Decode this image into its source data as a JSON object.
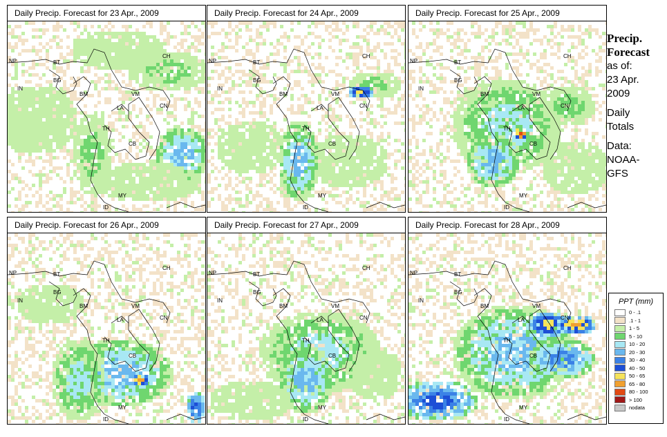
{
  "panels": [
    {
      "title": "Daily Precip. Forecast for  23 Apr., 2009"
    },
    {
      "title": "Daily Precip. Forecast for  24 Apr., 2009"
    },
    {
      "title": "Daily Precip. Forecast for  25 Apr., 2009"
    },
    {
      "title": "Daily Precip. Forecast for  26 Apr., 2009"
    },
    {
      "title": "Daily Precip. Forecast for  27 Apr., 2009"
    },
    {
      "title": "Daily Precip. Forecast for  28 Apr., 2009"
    }
  ],
  "side": {
    "heading1": "Precip.",
    "heading2": "Forecast",
    "asof1": "as of:",
    "asof2": "23 Apr.",
    "asof3": "2009",
    "daily1": "Daily",
    "daily2": "Totals",
    "data1": "Data:",
    "data2": "NOAA-",
    "data3": "GFS"
  },
  "map_labels": {
    "np": "NP",
    "bt": "BT",
    "bg": "BG",
    "in": "IN",
    "bm": "BM",
    "ch": "CH",
    "vm": "VM",
    "la": "LA",
    "th": "TH",
    "cb": "CB",
    "my": "MY",
    "id": "ID",
    "cn": "CN"
  },
  "legend": {
    "title": "PPT (mm)",
    "items": [
      {
        "label": "0 - .1",
        "color": "#ffffff"
      },
      {
        "label": ".1 - 1",
        "color": "#f3e2c8"
      },
      {
        "label": "1 - 5",
        "color": "#c4efa8"
      },
      {
        "label": "5 - 10",
        "color": "#6fd66f"
      },
      {
        "label": "10 - 20",
        "color": "#a8e8f4"
      },
      {
        "label": "20 - 30",
        "color": "#6ab8ee"
      },
      {
        "label": "30 - 40",
        "color": "#3b82e6"
      },
      {
        "label": "40 - 50",
        "color": "#1d4fd6"
      },
      {
        "label": "50 - 65",
        "color": "#f6e35a"
      },
      {
        "label": "65 - 80",
        "color": "#f0a030"
      },
      {
        "label": "80 - 100",
        "color": "#e24a14"
      },
      {
        "label": "> 100",
        "color": "#a01818"
      },
      {
        "label": "nodata",
        "color": "#c8c8c8"
      }
    ]
  }
}
